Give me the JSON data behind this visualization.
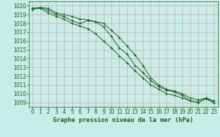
{
  "title": "Graphe pression niveau de la mer (hPa)",
  "background_color": "#c8ece8",
  "grid_color": "#d4a8a8",
  "line_color": "#1a5c1a",
  "x_hours": [
    0,
    1,
    2,
    3,
    4,
    5,
    6,
    7,
    8,
    9,
    10,
    11,
    12,
    13,
    14,
    15,
    16,
    17,
    18,
    19,
    20,
    21,
    22,
    23
  ],
  "series": [
    [
      1019.7,
      1019.8,
      1019.7,
      1019.2,
      1019.0,
      1018.8,
      1018.5,
      1018.4,
      1018.2,
      1018.0,
      1017.2,
      1016.4,
      1015.4,
      1014.4,
      1013.2,
      1011.8,
      1011.0,
      1010.5,
      1010.3,
      1010.0,
      1009.5,
      1009.3,
      1009.5,
      1009.2
    ],
    [
      1019.7,
      1019.8,
      1019.5,
      1019.0,
      1018.8,
      1018.3,
      1018.0,
      1018.3,
      1018.2,
      1017.6,
      1016.5,
      1015.2,
      1014.5,
      1013.2,
      1012.4,
      1011.5,
      1010.8,
      1010.4,
      1010.2,
      1009.8,
      1009.2,
      1009.0,
      1009.5,
      1009.0
    ],
    [
      1019.6,
      1019.7,
      1019.2,
      1018.8,
      1018.5,
      1018.0,
      1017.7,
      1017.4,
      1016.8,
      1016.0,
      1015.2,
      1014.3,
      1013.5,
      1012.6,
      1011.8,
      1011.0,
      1010.5,
      1010.0,
      1009.8,
      1009.5,
      1009.2,
      1009.0,
      1009.4,
      1009.0
    ]
  ],
  "ylim": [
    1008.5,
    1020.5
  ],
  "yticks": [
    1009,
    1010,
    1011,
    1012,
    1013,
    1014,
    1015,
    1016,
    1017,
    1018,
    1019,
    1020
  ],
  "xlim": [
    -0.5,
    23.5
  ],
  "tick_fontsize": 5.5,
  "title_fontsize": 6.5
}
